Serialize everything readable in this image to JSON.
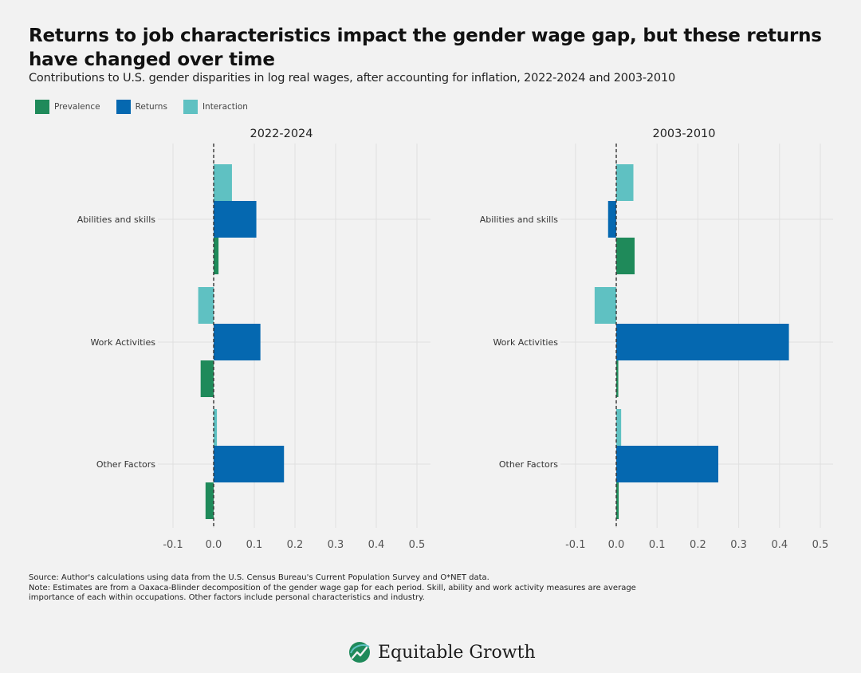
{
  "title": "Returns to job characteristics impact the gender wage gap, but these returns have changed over time",
  "subtitle": "Contributions to U.S. gender disparities in log real wages, after accounting for inflation, 2022-2024 and 2003-2010",
  "legend": [
    {
      "label": "Prevalence",
      "color": "#1f8a5a"
    },
    {
      "label": "Returns",
      "color": "#0568b0"
    },
    {
      "label": "Interaction",
      "color": "#5fc1c2"
    }
  ],
  "chart_data": [
    {
      "type": "bar",
      "orientation": "horizontal",
      "title": "2022-2024",
      "categories": [
        "Abilities and skills",
        "Work Activities",
        "Other Factors"
      ],
      "series": [
        {
          "name": "Interaction",
          "values": [
            0.045,
            -0.038,
            0.008
          ]
        },
        {
          "name": "Returns",
          "values": [
            0.105,
            0.115,
            0.173
          ]
        },
        {
          "name": "Prevalence",
          "values": [
            0.012,
            -0.032,
            -0.02
          ]
        }
      ],
      "xlim": [
        -0.1,
        0.5
      ],
      "xticks": [
        "-0.1",
        "0.0",
        "0.1",
        "0.2",
        "0.3",
        "0.4",
        "0.5"
      ]
    },
    {
      "type": "bar",
      "orientation": "horizontal",
      "title": "2003-2010",
      "categories": [
        "Abilities and skills",
        "Work Activities",
        "Other Factors"
      ],
      "series": [
        {
          "name": "Interaction",
          "values": [
            0.042,
            -0.053,
            0.012
          ]
        },
        {
          "name": "Returns",
          "values": [
            -0.02,
            0.423,
            0.25
          ]
        },
        {
          "name": "Prevalence",
          "values": [
            0.045,
            0.005,
            0.006
          ]
        }
      ],
      "xlim": [
        -0.1,
        0.5
      ],
      "xticks": [
        "-0.1",
        "0.0",
        "0.1",
        "0.2",
        "0.3",
        "0.4",
        "0.5"
      ]
    }
  ],
  "notes": {
    "source": "Source:  Author's calculations using data from the U.S. Census Bureau's Current Population Survey and O*NET data.",
    "note": "Note: Estimates are from a Oaxaca-Blinder decomposition of the gender wage gap for each period. Skill, ability and work activity measures are average importance of each within occupations. Other factors include personal characteristics and industry."
  },
  "brand": {
    "name": "Equitable Growth",
    "logo": "leaf-logo-icon"
  }
}
